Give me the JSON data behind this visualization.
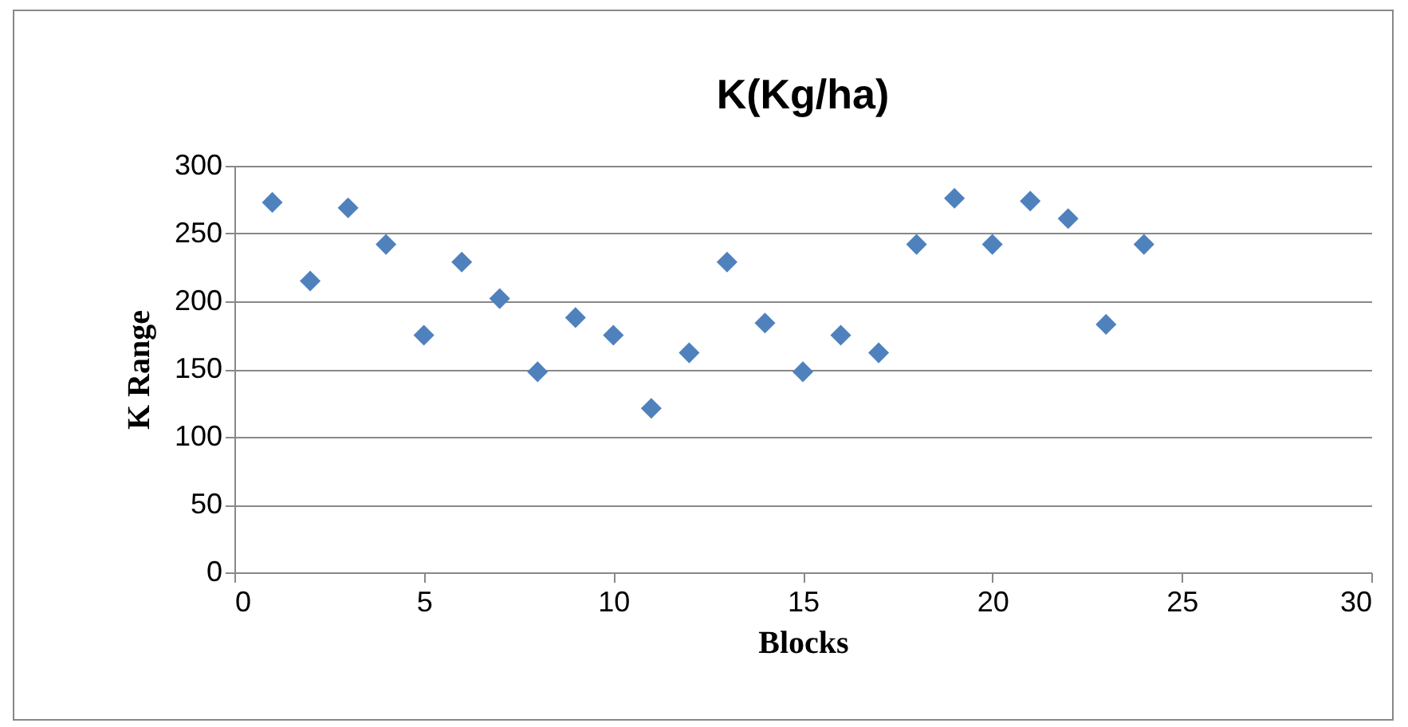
{
  "chart_data": {
    "type": "scatter",
    "title": "K(Kg/ha)",
    "xlabel": "Blocks",
    "ylabel": "K Range",
    "x": [
      1,
      2,
      3,
      4,
      5,
      6,
      7,
      8,
      9,
      10,
      11,
      12,
      13,
      14,
      15,
      16,
      17,
      18,
      19,
      20,
      21,
      22,
      23,
      24
    ],
    "series": [
      {
        "color": "#4f81bd",
        "values": [
          273,
          215,
          269,
          242,
          175,
          229,
          202,
          148,
          188,
          175,
          121,
          162,
          229,
          184,
          148,
          175,
          162,
          242,
          276,
          242,
          274,
          261,
          183,
          242
        ]
      }
    ],
    "xlim": [
      0,
      30
    ],
    "xticks": [
      0,
      5,
      10,
      15,
      20,
      25,
      30
    ],
    "ylim": [
      0,
      300
    ],
    "yticks": [
      0,
      50,
      100,
      150,
      200,
      250,
      300
    ],
    "grid": "y",
    "marker": "diamond"
  }
}
